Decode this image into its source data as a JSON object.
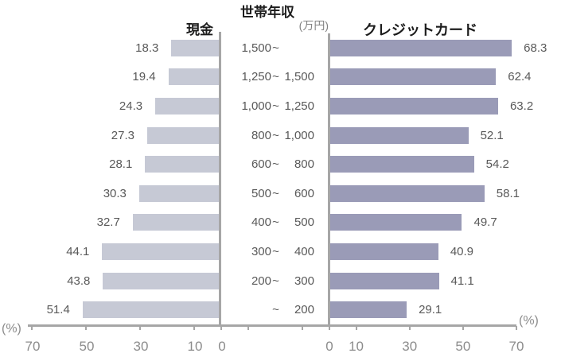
{
  "chart_data": {
    "type": "bar",
    "orientation": "horizontal-butterfly",
    "title": "世帯年収",
    "unit": "(万円)",
    "percent_label": "(%)",
    "categories": [
      "1,500~",
      "1,250~1,500",
      "1,000~1,250",
      "800~1,000",
      "600~ 800",
      "500~ 600",
      "400~ 500",
      "300~ 400",
      "200~ 300",
      "~ 200"
    ],
    "category_parts": [
      {
        "lo": "1,500",
        "hi": ""
      },
      {
        "lo": "1,250",
        "hi": "1,500"
      },
      {
        "lo": "1,000",
        "hi": "1,250"
      },
      {
        "lo": "800",
        "hi": "1,000"
      },
      {
        "lo": "600",
        "hi": "800"
      },
      {
        "lo": "500",
        "hi": "600"
      },
      {
        "lo": "400",
        "hi": "500"
      },
      {
        "lo": "300",
        "hi": "400"
      },
      {
        "lo": "200",
        "hi": "300"
      },
      {
        "lo": "",
        "hi": "200"
      }
    ],
    "series": [
      {
        "name": "現金",
        "side": "left",
        "values": [
          18.3,
          19.4,
          24.3,
          27.3,
          28.1,
          30.3,
          32.7,
          44.1,
          43.8,
          51.4
        ],
        "color": "#c6c9d5"
      },
      {
        "name": "クレジットカード",
        "side": "right",
        "values": [
          68.3,
          62.4,
          63.2,
          52.1,
          54.2,
          58.1,
          49.7,
          40.9,
          41.1,
          29.1
        ],
        "color": "#9a9bb7"
      }
    ],
    "axis": {
      "max": 70,
      "left_ticks": [
        "70",
        "50",
        "30",
        "10",
        "0"
      ],
      "right_ticks": [
        "0",
        "10",
        "30",
        "50",
        "70"
      ]
    },
    "grid": false,
    "legend_position": "column-headers-top"
  },
  "colors": {
    "left_bar": "#c6c9d5",
    "right_bar": "#9a9bb7",
    "axis_line": "#a6a6a6",
    "tick_text": "#8c8c8c",
    "value_text": "#595959",
    "header_text": "#1c1c1c",
    "unit_text": "#808080"
  }
}
